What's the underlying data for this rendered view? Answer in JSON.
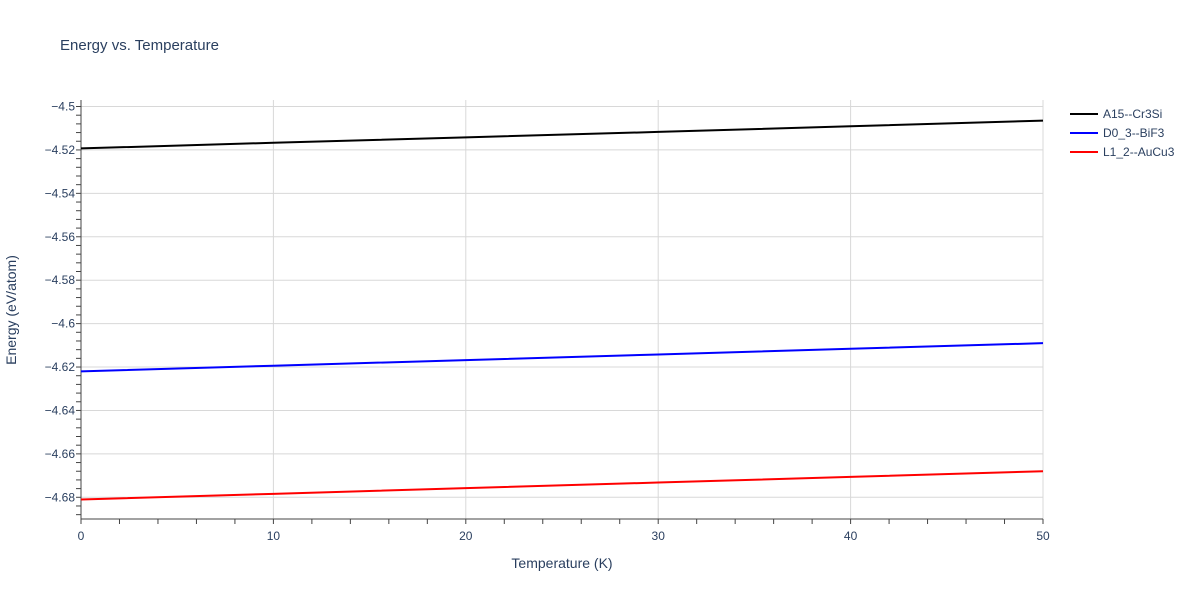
{
  "chart_data": {
    "type": "line",
    "title": "Energy vs. Temperature",
    "xlabel": "Temperature (K)",
    "ylabel": "Energy (eV/atom)",
    "xlim": [
      0,
      50
    ],
    "ylim": [
      -4.69,
      -4.497
    ],
    "x_ticks": [
      0,
      10,
      20,
      30,
      40,
      50
    ],
    "y_ticks": [
      -4.5,
      -4.52,
      -4.54,
      -4.56,
      -4.58,
      -4.6,
      -4.62,
      -4.64,
      -4.66,
      -4.68
    ],
    "y_tick_labels": [
      "−4.5",
      "−4.52",
      "−4.54",
      "−4.56",
      "−4.58",
      "−4.6",
      "−4.62",
      "−4.64",
      "−4.66",
      "−4.68"
    ],
    "grid": true,
    "legend_position": "top-right outside",
    "series": [
      {
        "name": "A15--Cr3Si",
        "color": "#000000",
        "x": [
          0,
          10,
          20,
          30,
          40,
          50
        ],
        "y": [
          -4.5193,
          -4.5167,
          -4.5142,
          -4.5117,
          -4.5091,
          -4.5065
        ]
      },
      {
        "name": "D0_3--BiF3",
        "color": "#0000ff",
        "x": [
          0,
          10,
          20,
          30,
          40,
          50
        ],
        "y": [
          -4.622,
          -4.6194,
          -4.6168,
          -4.6142,
          -4.6116,
          -4.609
        ]
      },
      {
        "name": "L1_2--AuCu3",
        "color": "#ff0000",
        "x": [
          0,
          10,
          20,
          30,
          40,
          50
        ],
        "y": [
          -4.681,
          -4.6784,
          -4.6758,
          -4.6732,
          -4.6706,
          -4.668
        ]
      }
    ]
  }
}
